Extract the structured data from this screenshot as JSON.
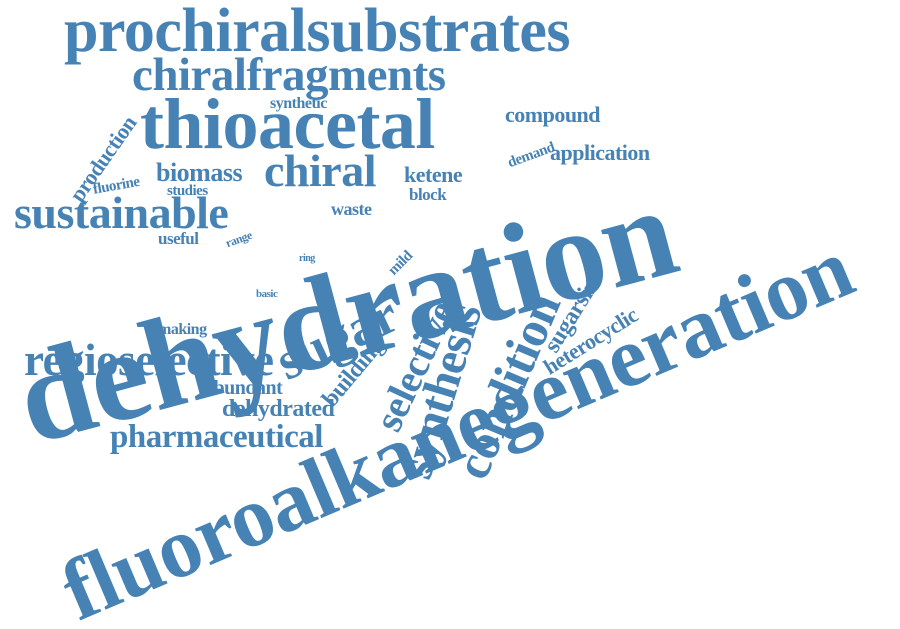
{
  "color": "#4682b4",
  "words": {
    "prochiralsubstrates": "prochiralsubstrates",
    "chiralfragments": "chiralfragments",
    "thioacetal": "thioacetal",
    "synthetic": "synthetic",
    "compound": "compound",
    "demand": "demand",
    "application": "application",
    "production": "production",
    "fluorine": "fluorine",
    "biomass": "biomass",
    "studies": "studies",
    "chiral": "chiral",
    "ketene": "ketene",
    "block": "block",
    "sustainable": "sustainable",
    "waste": "waste",
    "useful": "useful",
    "range": "range",
    "mild": "mild",
    "ring": "ring",
    "dehydration": "dehydration",
    "basic": "basic",
    "sugar": "sugar",
    "making": "making",
    "regioselective": "regioselective",
    "building": "building",
    "selective": "selective",
    "synthesis": "synthesis",
    "condition": "condition",
    "sugarsin": "sugarsin",
    "heterocyclic": "heterocyclic",
    "abundant": "abundant",
    "dehydrated": "dehydrated",
    "pharmaceutical": "pharmaceutical",
    "fluoroalkanegeneration": "fluoroalkanegeneration"
  }
}
